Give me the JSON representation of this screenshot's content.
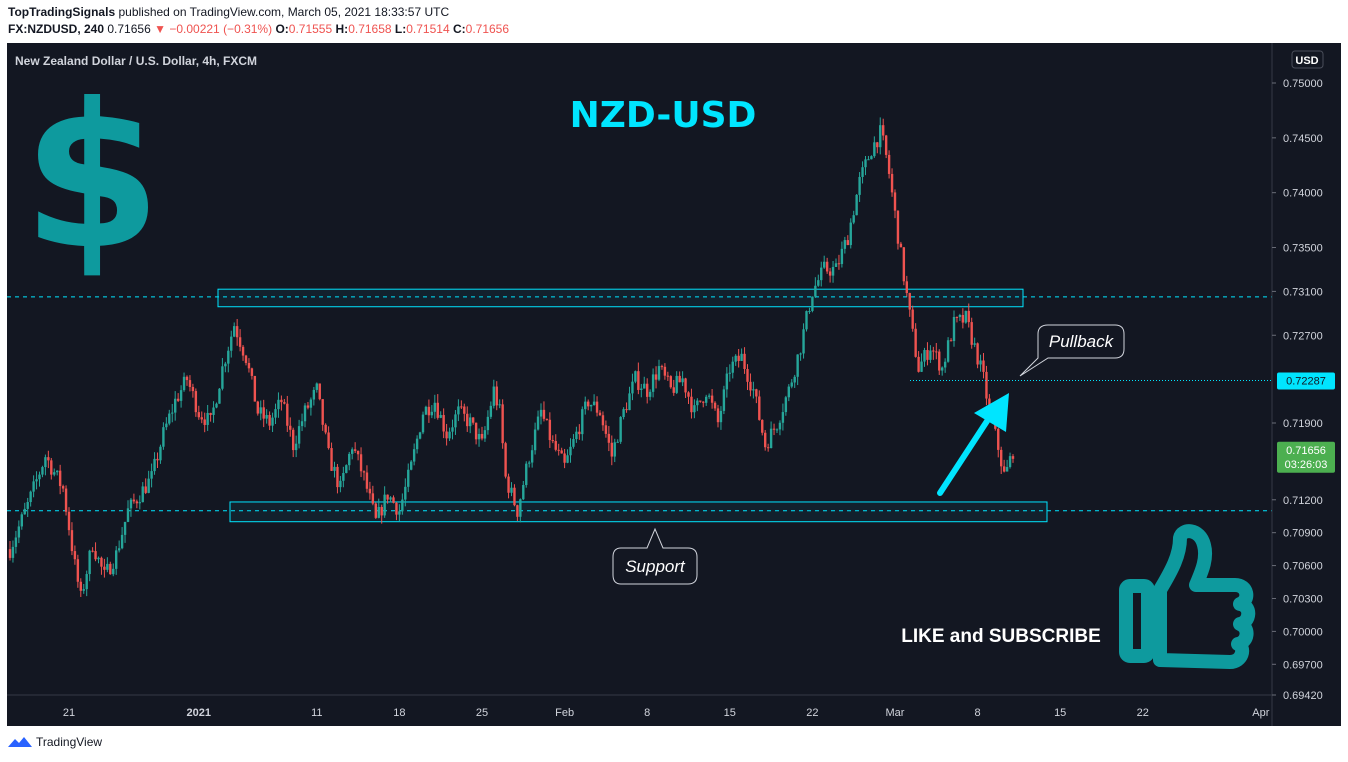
{
  "header": {
    "publisher": "TopTradingSignals",
    "published_text": "published on TradingView.com, March 05, 2021 18:33:57 UTC",
    "symbol": "FX:NZDUSD, 240",
    "last": "0.71656",
    "change": "−0.00221 (−0.31%)",
    "o_label": "O:",
    "o": "0.71555",
    "h_label": "H:",
    "h": "0.71658",
    "l_label": "L:",
    "l": "0.71514",
    "c_label": "C:",
    "c": "0.71656"
  },
  "legend_title": "New Zealand Dollar / U.S. Dollar, 4h, FXCM",
  "currency_badge": "USD",
  "overlay_title": "NZD-USD",
  "dollar_glyph": "$",
  "cta_text": "LIKE and SUBSCRIBE",
  "annotations": {
    "pullback": "Pullback",
    "support": "Support"
  },
  "price_tags": {
    "level": "0.72287",
    "last": "0.71656",
    "countdown": "03:26:03"
  },
  "footer": {
    "brand": "TradingView"
  },
  "colors": {
    "up": "#26a69a",
    "down": "#ef5350",
    "accent": "#00e5ff",
    "teal_graphic": "#0e9a9e",
    "last_tag": "#4caf50"
  },
  "chart_data": {
    "type": "candlestick",
    "title": "New Zealand Dollar / U.S. Dollar, 4h, FXCM",
    "ylim": [
      0.6942,
      0.7531
    ],
    "y_ticks": [
      "0.75000",
      "0.74500",
      "0.74000",
      "0.73500",
      "0.73100",
      "0.72700",
      "0.72287",
      "0.71900",
      "0.71656",
      "0.71200",
      "0.70900",
      "0.70600",
      "0.70300",
      "0.70000",
      "0.69700",
      "0.69420"
    ],
    "x_ticks": [
      {
        "label": "21",
        "day": 0
      },
      {
        "label": "2021",
        "day": 11
      },
      {
        "label": "11",
        "day": 21
      },
      {
        "label": "18",
        "day": 28
      },
      {
        "label": "25",
        "day": 35
      },
      {
        "label": "Feb",
        "day": 42
      },
      {
        "label": "8",
        "day": 49
      },
      {
        "label": "15",
        "day": 56
      },
      {
        "label": "22",
        "day": 63
      },
      {
        "label": "Mar",
        "day": 70
      },
      {
        "label": "8",
        "day": 77
      },
      {
        "label": "15",
        "day": 84
      },
      {
        "label": "22",
        "day": 91
      },
      {
        "label": "Apr",
        "day": 101
      }
    ],
    "horizontal_lines": [
      0.7305,
      0.711
    ],
    "resistance_zone": [
      0.7296,
      0.7312
    ],
    "support_zone": [
      0.71,
      0.7118
    ],
    "path": [
      [
        -5,
        0.7075
      ],
      [
        -3.5,
        0.7115
      ],
      [
        -2,
        0.716
      ],
      [
        -0.5,
        0.713
      ],
      [
        0.5,
        0.706
      ],
      [
        1,
        0.703
      ],
      [
        2,
        0.708
      ],
      [
        3,
        0.705
      ],
      [
        4,
        0.707
      ],
      [
        5,
        0.711
      ],
      [
        6,
        0.7125
      ],
      [
        7,
        0.714
      ],
      [
        8,
        0.718
      ],
      [
        9,
        0.721
      ],
      [
        10,
        0.723
      ],
      [
        11,
        0.72
      ],
      [
        12,
        0.719
      ],
      [
        13,
        0.724
      ],
      [
        14,
        0.728
      ],
      [
        15,
        0.725
      ],
      [
        16,
        0.72
      ],
      [
        17,
        0.719
      ],
      [
        18,
        0.721
      ],
      [
        19,
        0.717
      ],
      [
        20,
        0.72
      ],
      [
        21,
        0.722
      ],
      [
        22,
        0.716
      ],
      [
        23,
        0.713
      ],
      [
        24,
        0.717
      ],
      [
        25,
        0.714
      ],
      [
        25.5,
        0.712
      ],
      [
        26,
        0.71
      ],
      [
        27,
        0.7125
      ],
      [
        28,
        0.711
      ],
      [
        29,
        0.715
      ],
      [
        30,
        0.72
      ],
      [
        31,
        0.721
      ],
      [
        32,
        0.718
      ],
      [
        33,
        0.72
      ],
      [
        34,
        0.719
      ],
      [
        35,
        0.717
      ],
      [
        36,
        0.722
      ],
      [
        36.5,
        0.72
      ],
      [
        37,
        0.714
      ],
      [
        38,
        0.711
      ],
      [
        39,
        0.716
      ],
      [
        40,
        0.72
      ],
      [
        41,
        0.717
      ],
      [
        42,
        0.715
      ],
      [
        43,
        0.718
      ],
      [
        44,
        0.721
      ],
      [
        45,
        0.72
      ],
      [
        46,
        0.716
      ],
      [
        47,
        0.72
      ],
      [
        48,
        0.723
      ],
      [
        49,
        0.722
      ],
      [
        50,
        0.724
      ],
      [
        51,
        0.722
      ],
      [
        52,
        0.723
      ],
      [
        53,
        0.72
      ],
      [
        54,
        0.722
      ],
      [
        55,
        0.719
      ],
      [
        56,
        0.724
      ],
      [
        57,
        0.725
      ],
      [
        58,
        0.722
      ],
      [
        59,
        0.717
      ],
      [
        60,
        0.719
      ],
      [
        61,
        0.722
      ],
      [
        62,
        0.726
      ],
      [
        63,
        0.731
      ],
      [
        64,
        0.733
      ],
      [
        65,
        0.733
      ],
      [
        66,
        0.736
      ],
      [
        67,
        0.741
      ],
      [
        68,
        0.744
      ],
      [
        68.8,
        0.7455
      ],
      [
        69.4,
        0.7425
      ],
      [
        70,
        0.738
      ],
      [
        70.8,
        0.732
      ],
      [
        71.5,
        0.727
      ],
      [
        72,
        0.724
      ],
      [
        73,
        0.726
      ],
      [
        74,
        0.724
      ],
      [
        75,
        0.728
      ],
      [
        76,
        0.7285
      ],
      [
        77,
        0.725
      ],
      [
        77.5,
        0.723
      ],
      [
        78,
        0.72
      ],
      [
        78.7,
        0.717
      ],
      [
        79.3,
        0.714
      ],
      [
        80,
        0.7165
      ]
    ]
  }
}
